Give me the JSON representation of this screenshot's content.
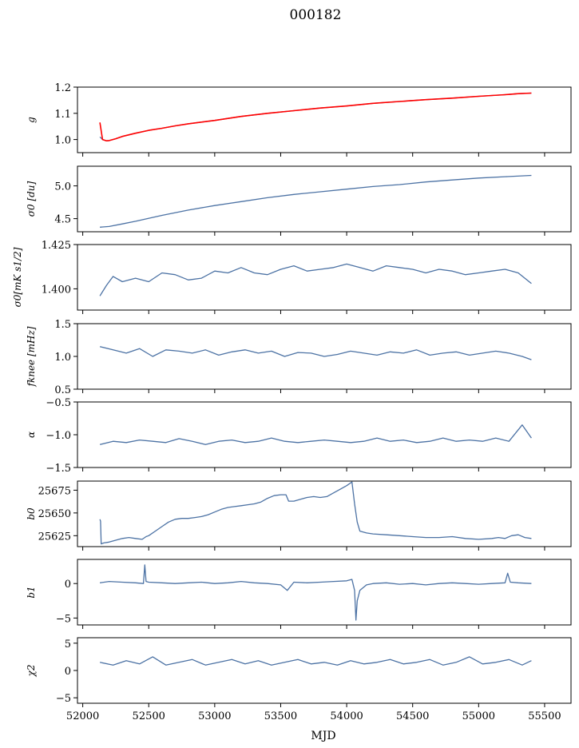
{
  "figure": {
    "title": "000182",
    "xlabel": "MJD"
  },
  "colors": {
    "series": "#4c72a4",
    "overlay": "#ff0000",
    "axis": "#000000",
    "background": "#ffffff"
  },
  "chart_data": [
    {
      "type": "line",
      "ylabel": "g",
      "xlim": [
        51960,
        55700
      ],
      "ylim": [
        0.95,
        1.2
      ],
      "yticks": [
        1.0,
        1.1,
        1.2
      ],
      "ytick_labels": [
        "1.0",
        "1.1",
        "1.2"
      ],
      "series": [
        {
          "x": [
            52130,
            52150,
            52180,
            52200,
            52250,
            52300,
            52400,
            52500,
            52600,
            52700,
            52800,
            53000,
            53200,
            53400,
            53600,
            53800,
            54000,
            54200,
            54400,
            54600,
            54800,
            55000,
            55200,
            55300,
            55400
          ],
          "y": [
            1.01,
            1.0,
            0.995,
            0.996,
            1.003,
            1.012,
            1.024,
            1.035,
            1.043,
            1.052,
            1.06,
            1.073,
            1.088,
            1.1,
            1.11,
            1.12,
            1.128,
            1.138,
            1.145,
            1.152,
            1.158,
            1.165,
            1.171,
            1.175,
            1.177
          ]
        },
        {
          "color": "red",
          "x": [
            52130,
            52150,
            52180,
            52200,
            52250,
            52300,
            52400,
            52500,
            52600,
            52700,
            52800,
            53000,
            53200,
            53400,
            53600,
            53800,
            54000,
            54200,
            54400,
            54600,
            54800,
            55000,
            55200,
            55300,
            55400
          ],
          "y": [
            1.065,
            1.0,
            0.995,
            0.996,
            1.003,
            1.012,
            1.024,
            1.035,
            1.043,
            1.052,
            1.06,
            1.073,
            1.088,
            1.1,
            1.11,
            1.12,
            1.128,
            1.138,
            1.145,
            1.152,
            1.158,
            1.165,
            1.171,
            1.175,
            1.177
          ]
        }
      ]
    },
    {
      "type": "line",
      "ylabel": "σ0 [du]",
      "xlim": [
        51960,
        55700
      ],
      "ylim": [
        4.3,
        5.3
      ],
      "yticks": [
        4.5,
        5.0
      ],
      "ytick_labels": [
        "4.5",
        "5.0"
      ],
      "series": [
        {
          "x": [
            52130,
            52200,
            52300,
            52400,
            52600,
            52800,
            53000,
            53200,
            53400,
            53600,
            53800,
            54000,
            54200,
            54400,
            54600,
            54800,
            55000,
            55200,
            55400
          ],
          "y": [
            4.37,
            4.38,
            4.42,
            4.46,
            4.55,
            4.63,
            4.7,
            4.76,
            4.82,
            4.87,
            4.91,
            4.95,
            4.99,
            5.02,
            5.06,
            5.09,
            5.12,
            5.14,
            5.16
          ]
        }
      ]
    },
    {
      "type": "line",
      "ylabel": "σ0[mK s1/2]",
      "xlim": [
        51960,
        55700
      ],
      "ylim": [
        1.388,
        1.425
      ],
      "yticks": [
        1.4,
        1.425
      ],
      "ytick_labels": [
        "1.400",
        "1.425"
      ],
      "series": [
        {
          "x": [
            52130,
            52180,
            52230,
            52300,
            52400,
            52500,
            52600,
            52700,
            52800,
            52900,
            53000,
            53100,
            53200,
            53300,
            53400,
            53500,
            53600,
            53700,
            53800,
            53900,
            54000,
            54100,
            54200,
            54300,
            54400,
            54500,
            54600,
            54700,
            54800,
            54900,
            55000,
            55100,
            55200,
            55300,
            55400
          ],
          "y": [
            1.396,
            1.402,
            1.407,
            1.404,
            1.406,
            1.404,
            1.409,
            1.408,
            1.405,
            1.406,
            1.41,
            1.409,
            1.412,
            1.409,
            1.408,
            1.411,
            1.413,
            1.41,
            1.411,
            1.412,
            1.414,
            1.412,
            1.41,
            1.413,
            1.412,
            1.411,
            1.409,
            1.411,
            1.41,
            1.408,
            1.409,
            1.41,
            1.411,
            1.409,
            1.403
          ]
        }
      ]
    },
    {
      "type": "line",
      "ylabel": "fknee [mHz]",
      "xlim": [
        51960,
        55700
      ],
      "ylim": [
        0.5,
        1.5
      ],
      "yticks": [
        0.5,
        1.0,
        1.5
      ],
      "ytick_labels": [
        "0.5",
        "1.0",
        "1.5"
      ],
      "series": [
        {
          "x": [
            52130,
            52230,
            52330,
            52430,
            52530,
            52630,
            52730,
            52830,
            52930,
            53030,
            53130,
            53230,
            53330,
            53430,
            53530,
            53630,
            53730,
            53830,
            53930,
            54030,
            54130,
            54230,
            54330,
            54430,
            54530,
            54630,
            54730,
            54830,
            54930,
            55030,
            55130,
            55230,
            55330,
            55400
          ],
          "y": [
            1.15,
            1.1,
            1.05,
            1.12,
            1.0,
            1.1,
            1.08,
            1.05,
            1.1,
            1.02,
            1.07,
            1.1,
            1.05,
            1.08,
            1.0,
            1.06,
            1.05,
            1.0,
            1.03,
            1.08,
            1.05,
            1.02,
            1.07,
            1.05,
            1.1,
            1.02,
            1.05,
            1.07,
            1.02,
            1.05,
            1.08,
            1.05,
            1.0,
            0.95
          ]
        }
      ]
    },
    {
      "type": "line",
      "ylabel": "α",
      "xlim": [
        51960,
        55700
      ],
      "ylim": [
        -1.5,
        -0.5
      ],
      "yticks": [
        -1.5,
        -1.0,
        -0.5
      ],
      "ytick_labels": [
        "−1.5",
        "−1.0",
        "−0.5"
      ],
      "series": [
        {
          "x": [
            52130,
            52230,
            52330,
            52430,
            52530,
            52630,
            52730,
            52830,
            52930,
            53030,
            53130,
            53230,
            53330,
            53430,
            53530,
            53630,
            53730,
            53830,
            53930,
            54030,
            54130,
            54230,
            54330,
            54430,
            54530,
            54630,
            54730,
            54830,
            54930,
            55030,
            55130,
            55230,
            55330,
            55400
          ],
          "y": [
            -1.15,
            -1.1,
            -1.12,
            -1.08,
            -1.1,
            -1.12,
            -1.06,
            -1.1,
            -1.15,
            -1.1,
            -1.08,
            -1.12,
            -1.1,
            -1.05,
            -1.1,
            -1.12,
            -1.1,
            -1.08,
            -1.1,
            -1.12,
            -1.1,
            -1.05,
            -1.1,
            -1.08,
            -1.12,
            -1.1,
            -1.05,
            -1.1,
            -1.08,
            -1.1,
            -1.05,
            -1.1,
            -0.85,
            -1.05
          ]
        }
      ]
    },
    {
      "type": "line",
      "ylabel": "b0",
      "xlim": [
        51960,
        55700
      ],
      "ylim": [
        25613,
        25685
      ],
      "yticks": [
        25625,
        25650,
        25675
      ],
      "ytick_labels": [
        "25625",
        "25650",
        "25675"
      ],
      "series": [
        {
          "x": [
            52130,
            52135,
            52140,
            52160,
            52200,
            52250,
            52300,
            52350,
            52400,
            52450,
            52480,
            52500,
            52550,
            52600,
            52650,
            52700,
            52750,
            52800,
            52850,
            52900,
            52950,
            53000,
            53050,
            53100,
            53150,
            53200,
            53250,
            53300,
            53350,
            53400,
            53450,
            53500,
            53540,
            53560,
            53600,
            53650,
            53700,
            53750,
            53800,
            53850,
            53900,
            53950,
            54000,
            54040,
            54060,
            54080,
            54100,
            54150,
            54200,
            54300,
            54400,
            54500,
            54600,
            54700,
            54800,
            54900,
            55000,
            55100,
            55150,
            55200,
            55250,
            55300,
            55350,
            55400
          ],
          "y": [
            25643,
            25641,
            25616,
            25617,
            25618,
            25620,
            25622,
            25623,
            25622,
            25621,
            25624,
            25625,
            25630,
            25635,
            25640,
            25643,
            25644,
            25644,
            25645,
            25646,
            25648,
            25651,
            25654,
            25656,
            25657,
            25658,
            25659,
            25660,
            25662,
            25666,
            25669,
            25670,
            25670,
            25663,
            25663,
            25665,
            25667,
            25668,
            25667,
            25668,
            25672,
            25676,
            25680,
            25684,
            25660,
            25640,
            25630,
            25628,
            25627,
            25626,
            25625,
            25624,
            25623,
            25623,
            25624,
            25622,
            25621,
            25622,
            25623,
            25622,
            25625,
            25626,
            25623,
            25622
          ]
        }
      ]
    },
    {
      "type": "line",
      "ylabel": "b1",
      "xlim": [
        51960,
        55700
      ],
      "ylim": [
        -6,
        3.5
      ],
      "yticks": [
        -5,
        0
      ],
      "ytick_labels": [
        "−5",
        "0"
      ],
      "series": [
        {
          "x": [
            52130,
            52200,
            52300,
            52400,
            52460,
            52470,
            52480,
            52500,
            52600,
            52700,
            52800,
            52900,
            53000,
            53100,
            53200,
            53300,
            53400,
            53500,
            53550,
            53600,
            53700,
            53800,
            53900,
            54000,
            54040,
            54060,
            54070,
            54080,
            54100,
            54150,
            54200,
            54300,
            54400,
            54500,
            54600,
            54700,
            54800,
            54900,
            55000,
            55100,
            55200,
            55220,
            55240,
            55300,
            55400
          ],
          "y": [
            0.1,
            0.3,
            0.2,
            0.1,
            0.0,
            2.7,
            0.3,
            0.2,
            0.1,
            0.0,
            0.1,
            0.2,
            0.0,
            0.1,
            0.3,
            0.1,
            0.0,
            -0.2,
            -1.0,
            0.2,
            0.1,
            0.2,
            0.3,
            0.4,
            0.6,
            -1.0,
            -5.3,
            -2.5,
            -1.0,
            -0.2,
            0.0,
            0.1,
            -0.1,
            0.0,
            -0.2,
            0.0,
            0.1,
            0.0,
            -0.1,
            0.0,
            0.1,
            1.5,
            0.2,
            0.1,
            0.0
          ]
        }
      ]
    },
    {
      "type": "line",
      "ylabel": "χ2",
      "xlim": [
        51960,
        55700
      ],
      "ylim": [
        -6,
        6
      ],
      "yticks": [
        -5,
        0,
        5
      ],
      "ytick_labels": [
        "−5",
        "0",
        "5"
      ],
      "series": [
        {
          "x": [
            52130,
            52230,
            52330,
            52430,
            52530,
            52630,
            52730,
            52830,
            52930,
            53030,
            53130,
            53230,
            53330,
            53430,
            53530,
            53630,
            53730,
            53830,
            53930,
            54030,
            54130,
            54230,
            54330,
            54430,
            54530,
            54630,
            54730,
            54830,
            54930,
            55030,
            55130,
            55230,
            55330,
            55400
          ],
          "y": [
            1.5,
            1.0,
            1.8,
            1.2,
            2.5,
            1.0,
            1.5,
            2.0,
            1.0,
            1.5,
            2.0,
            1.2,
            1.8,
            1.0,
            1.5,
            2.0,
            1.2,
            1.5,
            1.0,
            1.8,
            1.2,
            1.5,
            2.0,
            1.2,
            1.5,
            2.0,
            1.0,
            1.5,
            2.5,
            1.2,
            1.5,
            2.0,
            1.0,
            1.8
          ]
        }
      ]
    }
  ],
  "x_axis": {
    "ticks": [
      52000,
      52500,
      53000,
      53500,
      54000,
      54500,
      55000,
      55500
    ],
    "tick_labels": [
      "52000",
      "52500",
      "53000",
      "53500",
      "54000",
      "54500",
      "55000",
      "55500"
    ]
  }
}
